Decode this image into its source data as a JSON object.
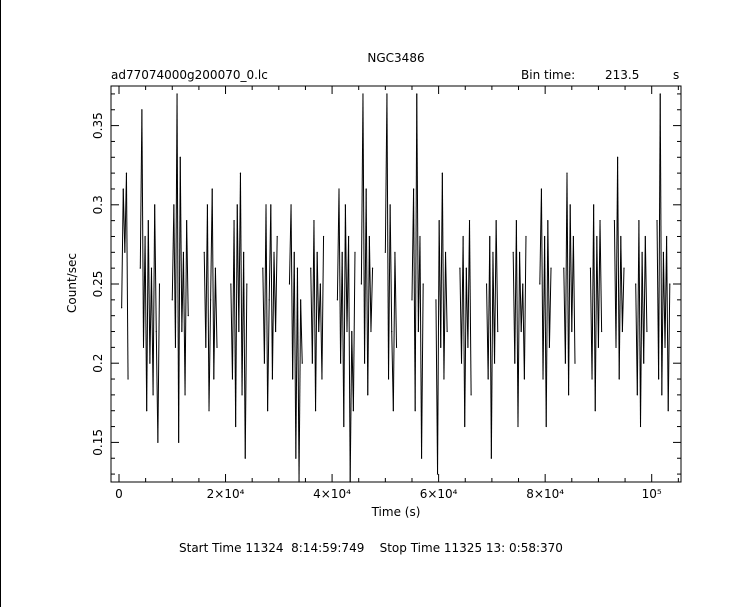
{
  "chart_data": {
    "type": "line",
    "title": "NGC3486",
    "file_label": "ad77074000g200070_0.lc",
    "bin_time_label": "Bin time:",
    "bin_time_value": "213.5",
    "bin_time_unit": "s",
    "xlabel": "Time (s)",
    "ylabel": "Count/sec",
    "xlim": [
      -1500,
      105500
    ],
    "ylim": [
      0.125,
      0.375
    ],
    "x_ticks": [
      {
        "value": 0,
        "label": "0"
      },
      {
        "value": 20000,
        "label": "2×10⁴"
      },
      {
        "value": 40000,
        "label": "4×10⁴"
      },
      {
        "value": 60000,
        "label": "6×10⁴"
      },
      {
        "value": 80000,
        "label": "8×10⁴"
      },
      {
        "value": 100000,
        "label": "10⁵"
      }
    ],
    "y_ticks": [
      {
        "value": 0.15,
        "label": "0.15"
      },
      {
        "value": 0.2,
        "label": "0.2"
      },
      {
        "value": 0.25,
        "label": "0.25"
      },
      {
        "value": 0.3,
        "label": "0.3"
      },
      {
        "value": 0.35,
        "label": "0.35"
      }
    ],
    "series": [
      {
        "color": "#000000",
        "points": [
          [
            500,
            0.235
          ],
          [
            800,
            0.31
          ],
          [
            1100,
            0.27
          ],
          [
            1400,
            0.32
          ],
          [
            1700,
            0.19
          ],
          [
            4000,
            0.26
          ],
          [
            4300,
            0.36
          ],
          [
            4600,
            0.21
          ],
          [
            4900,
            0.28
          ],
          [
            5200,
            0.17
          ],
          [
            5500,
            0.29
          ],
          [
            5800,
            0.2
          ],
          [
            6100,
            0.26
          ],
          [
            6400,
            0.18
          ],
          [
            6700,
            0.3
          ],
          [
            7000,
            0.22
          ],
          [
            7300,
            0.15
          ],
          [
            7600,
            0.25
          ],
          [
            10000,
            0.24
          ],
          [
            10300,
            0.3
          ],
          [
            10600,
            0.21
          ],
          [
            10900,
            0.37
          ],
          [
            11200,
            0.15
          ],
          [
            11500,
            0.33
          ],
          [
            11800,
            0.22
          ],
          [
            12100,
            0.27
          ],
          [
            12400,
            0.18
          ],
          [
            12700,
            0.29
          ],
          [
            13000,
            0.23
          ],
          [
            16000,
            0.27
          ],
          [
            16300,
            0.21
          ],
          [
            16600,
            0.3
          ],
          [
            16900,
            0.17
          ],
          [
            17200,
            0.24
          ],
          [
            17500,
            0.31
          ],
          [
            17800,
            0.19
          ],
          [
            18100,
            0.26
          ],
          [
            18400,
            0.21
          ],
          [
            21000,
            0.25
          ],
          [
            21300,
            0.19
          ],
          [
            21600,
            0.29
          ],
          [
            21900,
            0.16
          ],
          [
            22200,
            0.3
          ],
          [
            22500,
            0.22
          ],
          [
            22800,
            0.32
          ],
          [
            23100,
            0.18
          ],
          [
            23400,
            0.27
          ],
          [
            23700,
            0.14
          ],
          [
            24000,
            0.25
          ],
          [
            27000,
            0.26
          ],
          [
            27300,
            0.2
          ],
          [
            27600,
            0.3
          ],
          [
            27900,
            0.17
          ],
          [
            28200,
            0.24
          ],
          [
            28500,
            0.3
          ],
          [
            28800,
            0.19
          ],
          [
            29100,
            0.27
          ],
          [
            29400,
            0.22
          ],
          [
            29700,
            0.28
          ],
          [
            32000,
            0.25
          ],
          [
            32300,
            0.3
          ],
          [
            32600,
            0.19
          ],
          [
            32900,
            0.27
          ],
          [
            33200,
            0.14
          ],
          [
            33500,
            0.26
          ],
          [
            33800,
            0.125
          ],
          [
            34100,
            0.24
          ],
          [
            34400,
            0.2
          ],
          [
            36000,
            0.26
          ],
          [
            36300,
            0.2
          ],
          [
            36600,
            0.29
          ],
          [
            36900,
            0.17
          ],
          [
            37200,
            0.27
          ],
          [
            37500,
            0.22
          ],
          [
            37800,
            0.25
          ],
          [
            38100,
            0.19
          ],
          [
            38400,
            0.28
          ],
          [
            41000,
            0.24
          ],
          [
            41300,
            0.31
          ],
          [
            41600,
            0.2
          ],
          [
            41900,
            0.27
          ],
          [
            42200,
            0.16
          ],
          [
            42500,
            0.3
          ],
          [
            42800,
            0.22
          ],
          [
            43100,
            0.28
          ],
          [
            43400,
            0.125
          ],
          [
            43700,
            0.22
          ],
          [
            44000,
            0.17
          ],
          [
            44300,
            0.27
          ],
          [
            45500,
            0.25
          ],
          [
            45800,
            0.37
          ],
          [
            46100,
            0.2
          ],
          [
            46400,
            0.31
          ],
          [
            46700,
            0.18
          ],
          [
            47000,
            0.28
          ],
          [
            47300,
            0.22
          ],
          [
            47600,
            0.26
          ],
          [
            50000,
            0.27
          ],
          [
            50300,
            0.37
          ],
          [
            50600,
            0.19
          ],
          [
            50900,
            0.3
          ],
          [
            51200,
            0.22
          ],
          [
            51500,
            0.17
          ],
          [
            51800,
            0.27
          ],
          [
            52100,
            0.21
          ],
          [
            55000,
            0.24
          ],
          [
            55300,
            0.31
          ],
          [
            55600,
            0.17
          ],
          [
            55900,
            0.37
          ],
          [
            56200,
            0.22
          ],
          [
            56500,
            0.28
          ],
          [
            56800,
            0.14
          ],
          [
            57100,
            0.25
          ],
          [
            59500,
            0.24
          ],
          [
            59800,
            0.13
          ],
          [
            60100,
            0.29
          ],
          [
            60400,
            0.21
          ],
          [
            60700,
            0.32
          ],
          [
            61000,
            0.19
          ],
          [
            61300,
            0.27
          ],
          [
            61600,
            0.22
          ],
          [
            64000,
            0.26
          ],
          [
            64300,
            0.2
          ],
          [
            64600,
            0.28
          ],
          [
            64900,
            0.16
          ],
          [
            65200,
            0.26
          ],
          [
            65500,
            0.21
          ],
          [
            65800,
            0.29
          ],
          [
            66100,
            0.18
          ],
          [
            69000,
            0.25
          ],
          [
            69300,
            0.19
          ],
          [
            69600,
            0.28
          ],
          [
            69900,
            0.14
          ],
          [
            70200,
            0.27
          ],
          [
            70500,
            0.2
          ],
          [
            70800,
            0.29
          ],
          [
            71100,
            0.22
          ],
          [
            74000,
            0.27
          ],
          [
            74300,
            0.2
          ],
          [
            74600,
            0.29
          ],
          [
            74900,
            0.16
          ],
          [
            75200,
            0.27
          ],
          [
            75500,
            0.22
          ],
          [
            75800,
            0.25
          ],
          [
            76100,
            0.19
          ],
          [
            76400,
            0.28
          ],
          [
            79000,
            0.25
          ],
          [
            79300,
            0.31
          ],
          [
            79600,
            0.19
          ],
          [
            79900,
            0.28
          ],
          [
            80200,
            0.16
          ],
          [
            80500,
            0.29
          ],
          [
            80800,
            0.21
          ],
          [
            81100,
            0.26
          ],
          [
            83500,
            0.26
          ],
          [
            83800,
            0.2
          ],
          [
            84100,
            0.32
          ],
          [
            84400,
            0.18
          ],
          [
            84700,
            0.3
          ],
          [
            85000,
            0.22
          ],
          [
            85300,
            0.28
          ],
          [
            85600,
            0.2
          ],
          [
            88500,
            0.26
          ],
          [
            88800,
            0.19
          ],
          [
            89100,
            0.3
          ],
          [
            89400,
            0.17
          ],
          [
            89700,
            0.28
          ],
          [
            90000,
            0.21
          ],
          [
            90300,
            0.29
          ],
          [
            90600,
            0.22
          ],
          [
            93000,
            0.29
          ],
          [
            93300,
            0.21
          ],
          [
            93600,
            0.33
          ],
          [
            93900,
            0.19
          ],
          [
            94200,
            0.28
          ],
          [
            94500,
            0.22
          ],
          [
            94800,
            0.26
          ],
          [
            97000,
            0.25
          ],
          [
            97300,
            0.18
          ],
          [
            97600,
            0.29
          ],
          [
            97900,
            0.16
          ],
          [
            98200,
            0.27
          ],
          [
            98500,
            0.2
          ],
          [
            98800,
            0.28
          ],
          [
            99100,
            0.22
          ],
          [
            101000,
            0.29
          ],
          [
            101300,
            0.19
          ],
          [
            101600,
            0.37
          ],
          [
            101900,
            0.18
          ],
          [
            102200,
            0.27
          ],
          [
            102500,
            0.21
          ],
          [
            102800,
            0.28
          ],
          [
            103100,
            0.17
          ],
          [
            103400,
            0.25
          ]
        ]
      }
    ]
  },
  "footer": {
    "start_label": "Start Time",
    "start_value": "11324  8:14:59:749",
    "stop_label": "Stop Time",
    "stop_value": "11325 13: 0:58:370"
  }
}
